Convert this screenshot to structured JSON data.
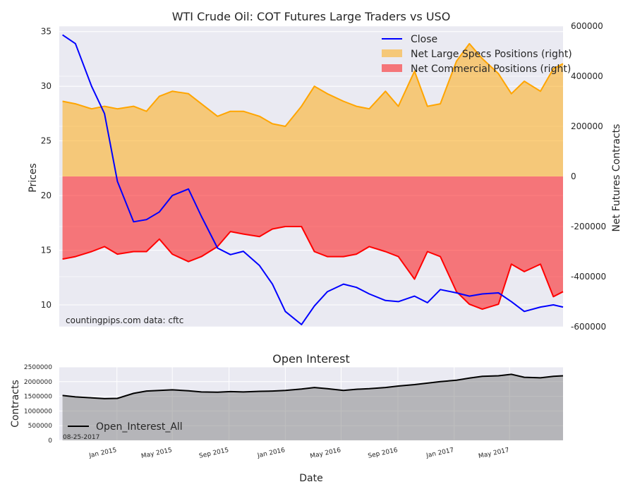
{
  "chart_data": [
    {
      "type": "line",
      "title": "WTI Crude Oil: COT Futures Large Traders vs USO",
      "ylabel": "Prices",
      "y2label": "Net Futures Contracts",
      "ylim": [
        8,
        35.5
      ],
      "y2lim": [
        -600000,
        600000
      ],
      "yticks": [
        10,
        15,
        20,
        25,
        30,
        35
      ],
      "y2ticks": [
        600000,
        400000,
        200000,
        0,
        -200000,
        -400000,
        -600000
      ],
      "grid": true,
      "legend_position": "top-right",
      "annotation": "countingpips.com    data: cftc",
      "x": [
        "2014-09-05",
        "2014-10-03",
        "2014-11-07",
        "2014-12-05",
        "2015-01-02",
        "2015-02-06",
        "2015-03-06",
        "2015-04-03",
        "2015-05-01",
        "2015-06-05",
        "2015-07-03",
        "2015-08-07",
        "2015-09-04",
        "2015-10-02",
        "2015-11-06",
        "2015-12-04",
        "2016-01-01",
        "2016-02-05",
        "2016-03-04",
        "2016-04-01",
        "2016-05-06",
        "2016-06-03",
        "2016-07-01",
        "2016-08-05",
        "2016-09-02",
        "2016-10-07",
        "2016-11-04",
        "2016-12-02",
        "2017-01-06",
        "2017-02-03",
        "2017-03-03",
        "2017-04-07",
        "2017-05-05",
        "2017-06-02",
        "2017-07-07",
        "2017-08-04",
        "2017-08-25"
      ],
      "series": [
        {
          "name": "Close",
          "axis": "left",
          "color": "#0000ff",
          "values": [
            34.7,
            33.9,
            30.0,
            27.5,
            21.3,
            17.6,
            17.8,
            18.5,
            20.0,
            20.6,
            18.1,
            15.2,
            14.6,
            14.9,
            13.6,
            11.9,
            9.4,
            8.2,
            9.9,
            11.2,
            11.9,
            11.6,
            11.0,
            10.4,
            10.3,
            10.8,
            10.2,
            11.4,
            11.1,
            10.8,
            11.0,
            11.1,
            10.3,
            9.4,
            9.8,
            10.0,
            9.8
          ]
        },
        {
          "name": "Net Large Specs Positions (right)",
          "axis": "right",
          "color": "#ffa500",
          "values": [
            300000,
            290000,
            270000,
            280000,
            270000,
            280000,
            260000,
            320000,
            340000,
            330000,
            290000,
            240000,
            260000,
            260000,
            240000,
            210000,
            200000,
            280000,
            360000,
            330000,
            300000,
            280000,
            270000,
            340000,
            280000,
            420000,
            280000,
            290000,
            460000,
            530000,
            470000,
            410000,
            330000,
            380000,
            340000,
            430000,
            450000
          ]
        },
        {
          "name": "Net Commercial Positions (right)",
          "axis": "right",
          "color": "#ff0000",
          "values": [
            -330000,
            -320000,
            -300000,
            -280000,
            -310000,
            -300000,
            -300000,
            -250000,
            -310000,
            -340000,
            -320000,
            -280000,
            -220000,
            -230000,
            -240000,
            -210000,
            -200000,
            -200000,
            -300000,
            -320000,
            -320000,
            -310000,
            -280000,
            -300000,
            -320000,
            -410000,
            -300000,
            -320000,
            -460000,
            -510000,
            -530000,
            -510000,
            -350000,
            -380000,
            -350000,
            -480000,
            -460000
          ]
        }
      ]
    },
    {
      "type": "area",
      "title": "Open Interest",
      "ylabel": "Contracts",
      "xlabel": "Date",
      "ylim": [
        0,
        2500000
      ],
      "yticks": [
        0,
        500000,
        1000000,
        1500000,
        2000000,
        2500000
      ],
      "xtick_labels": [
        "Jan 2015",
        "May 2015",
        "Sep 2015",
        "Jan 2016",
        "May 2016",
        "Sep 2016",
        "Jan 2017",
        "May 2017"
      ],
      "grid": true,
      "legend_position": "bottom-left",
      "annotation": "08-25-2017",
      "series": [
        {
          "name": "Open_Interest_All",
          "color": "#000000",
          "values": [
            1530000,
            1480000,
            1450000,
            1420000,
            1430000,
            1600000,
            1680000,
            1700000,
            1720000,
            1690000,
            1650000,
            1640000,
            1660000,
            1650000,
            1670000,
            1680000,
            1700000,
            1750000,
            1800000,
            1760000,
            1700000,
            1740000,
            1760000,
            1800000,
            1850000,
            1900000,
            1950000,
            2000000,
            2050000,
            2120000,
            2180000,
            2200000,
            2250000,
            2150000,
            2130000,
            2180000,
            2200000
          ]
        }
      ]
    }
  ]
}
